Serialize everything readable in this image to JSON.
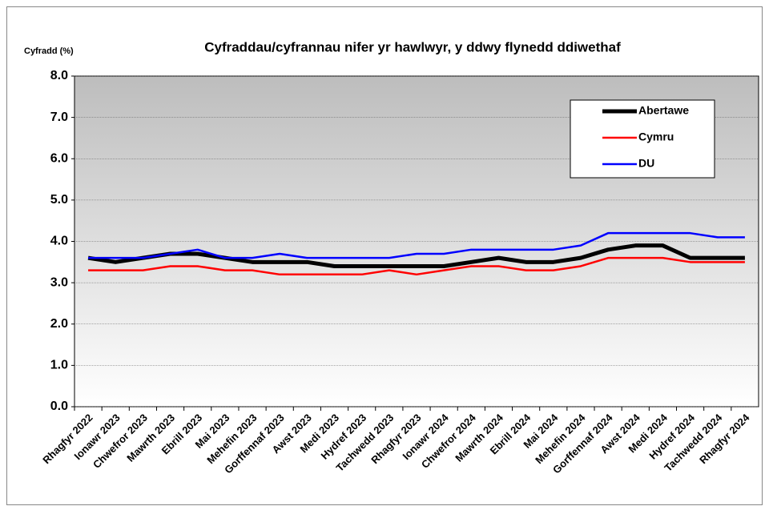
{
  "chart_data": {
    "type": "line",
    "title": "Cyfraddau/cyfrannau nifer yr hawlwyr, y ddwy flynedd ddiwethaf",
    "y_label": "Cyfradd (%)",
    "categories": [
      "Rhagfyr 2022",
      "Ionawr 2023",
      "Chwefror 2023",
      "Mawrth 2023",
      "Ebrill 2023",
      "Mai 2023",
      "Mehefin 2023",
      "Gorffennaf 2023",
      "Awst 2023",
      "Medi 2023",
      "Hydref 2023",
      "Tachwedd 2023",
      "Rhagfyr 2023",
      "Ionawr 2024",
      "Chwefror 2024",
      "Mawrth 2024",
      "Ebrill 2024",
      "Mai 2024",
      "Mehefin 2024",
      "Gorffennaf 2024",
      "Awst 2024",
      "Medi 2024",
      "Hydref 2024",
      "Tachwedd 2024",
      "Rhagfyr 2024"
    ],
    "series": [
      {
        "name": "Abertawe",
        "color": "#000000",
        "values": [
          3.6,
          3.5,
          3.6,
          3.7,
          3.7,
          3.6,
          3.5,
          3.5,
          3.5,
          3.4,
          3.4,
          3.4,
          3.4,
          3.4,
          3.5,
          3.6,
          3.5,
          3.5,
          3.6,
          3.8,
          3.9,
          3.9,
          3.6,
          3.6,
          3.6
        ]
      },
      {
        "name": "Cymru",
        "color": "#ff0000",
        "values": [
          3.3,
          3.3,
          3.3,
          3.4,
          3.4,
          3.3,
          3.3,
          3.2,
          3.2,
          3.2,
          3.2,
          3.3,
          3.2,
          3.3,
          3.4,
          3.4,
          3.3,
          3.3,
          3.4,
          3.6,
          3.6,
          3.6,
          3.5,
          3.5,
          3.5
        ]
      },
      {
        "name": "DU",
        "color": "#0000ff",
        "values": [
          3.6,
          3.6,
          3.6,
          3.7,
          3.8,
          3.6,
          3.6,
          3.7,
          3.6,
          3.6,
          3.6,
          3.6,
          3.7,
          3.7,
          3.8,
          3.8,
          3.8,
          3.8,
          3.9,
          4.2,
          4.2,
          4.2,
          4.2,
          4.1,
          4.1
        ]
      }
    ],
    "ylim": [
      0,
      8
    ],
    "yticks": [
      {
        "value": 0,
        "label": "0.0"
      },
      {
        "value": 1,
        "label": "1.0"
      },
      {
        "value": 2,
        "label": "2.0"
      },
      {
        "value": 3,
        "label": "3.0"
      },
      {
        "value": 4,
        "label": "4.0"
      },
      {
        "value": 5,
        "label": "5.0"
      },
      {
        "value": 6,
        "label": "6.0"
      },
      {
        "value": 7,
        "label": "7.0"
      },
      {
        "value": 8,
        "label": "8.0"
      }
    ],
    "grid": true,
    "legend": "upper right"
  }
}
